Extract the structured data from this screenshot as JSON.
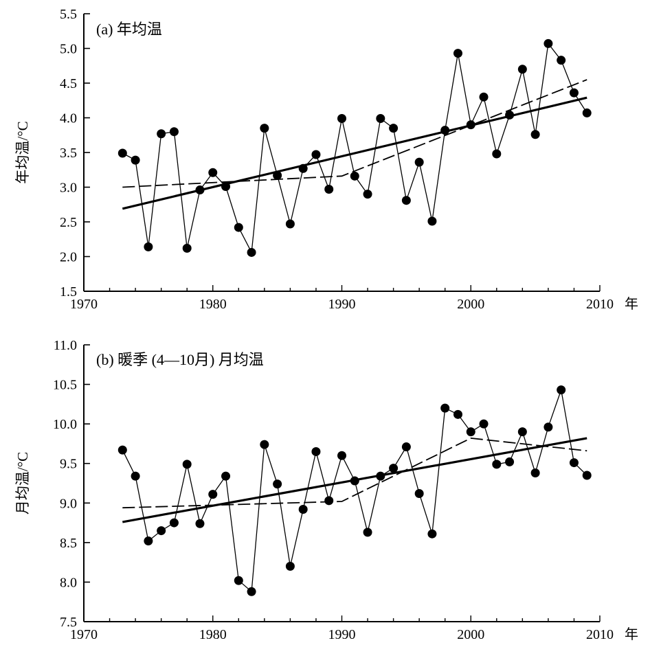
{
  "chart_data": [
    {
      "type": "line",
      "title": "(a) 年均温",
      "xlabel": "",
      "x_unit_label": "年",
      "ylabel": "年均温/°C",
      "xlim": [
        1970,
        2010
      ],
      "ylim": [
        1.5,
        5.5
      ],
      "xticks": [
        1970,
        1980,
        1990,
        2000,
        2010
      ],
      "yticks": [
        "1.5",
        "2.0",
        "2.5",
        "3.0",
        "3.5",
        "4.0",
        "4.5",
        "5.0",
        "5.5"
      ],
      "grid": false,
      "series": [
        {
          "style": "markers-solid-thin",
          "x": [
            1973,
            1974,
            1975,
            1976,
            1977,
            1978,
            1979,
            1980,
            1981,
            1982,
            1983,
            1984,
            1985,
            1986,
            1987,
            1988,
            1989,
            1990,
            1991,
            1992,
            1993,
            1994,
            1995,
            1996,
            1997,
            1998,
            1999,
            2000,
            2001,
            2002,
            2003,
            2004,
            2005,
            2006,
            2007,
            2008,
            2009
          ],
          "y": [
            3.49,
            3.39,
            2.14,
            3.77,
            3.8,
            2.12,
            2.96,
            3.21,
            3.01,
            2.42,
            2.06,
            3.85,
            3.17,
            2.47,
            3.27,
            3.47,
            2.97,
            3.99,
            3.16,
            2.9,
            3.99,
            3.85,
            2.81,
            3.36,
            2.51,
            3.82,
            4.93,
            3.9,
            4.3,
            3.48,
            4.04,
            4.7,
            3.76,
            5.07,
            4.83,
            4.36,
            4.07
          ]
        },
        {
          "style": "linear-trend-solid-thick",
          "x": [
            1973,
            2009
          ],
          "y": [
            2.69,
            4.29
          ]
        },
        {
          "style": "piecewise-dashed",
          "x": [
            1973,
            1990,
            2009
          ],
          "y": [
            3.0,
            3.16,
            4.55
          ]
        }
      ]
    },
    {
      "type": "line",
      "title": "(b) 暖季 (4—10月) 月均温",
      "xlabel": "",
      "x_unit_label": "年",
      "ylabel": "月均温/°C",
      "xlim": [
        1970,
        2010
      ],
      "ylim": [
        7.5,
        11.0
      ],
      "xticks": [
        1970,
        1980,
        1990,
        2000,
        2010
      ],
      "yticks": [
        "7.5",
        "8.0",
        "8.5",
        "9.0",
        "9.5",
        "10.0",
        "10.5",
        "11.0"
      ],
      "grid": false,
      "series": [
        {
          "style": "markers-solid-thin",
          "x": [
            1973,
            1974,
            1975,
            1976,
            1977,
            1978,
            1979,
            1980,
            1981,
            1982,
            1983,
            1984,
            1985,
            1986,
            1987,
            1988,
            1989,
            1990,
            1991,
            1992,
            1993,
            1994,
            1995,
            1996,
            1997,
            1998,
            1999,
            2000,
            2001,
            2002,
            2003,
            2004,
            2005,
            2006,
            2007,
            2008,
            2009
          ],
          "y": [
            9.67,
            9.34,
            8.52,
            8.65,
            8.75,
            9.49,
            8.74,
            9.11,
            9.34,
            8.02,
            7.88,
            9.74,
            9.24,
            8.2,
            8.92,
            9.65,
            9.03,
            9.6,
            9.28,
            8.63,
            9.34,
            9.44,
            9.71,
            9.12,
            8.61,
            10.2,
            10.12,
            9.9,
            10.0,
            9.49,
            9.52,
            9.9,
            9.38,
            9.96,
            10.43,
            9.51,
            9.35
          ]
        },
        {
          "style": "linear-trend-solid-thick",
          "x": [
            1973,
            2009
          ],
          "y": [
            8.76,
            9.82
          ]
        },
        {
          "style": "piecewise-dashed",
          "x": [
            1973,
            1990,
            2000,
            2009
          ],
          "y": [
            8.94,
            9.02,
            9.82,
            9.66
          ]
        }
      ]
    }
  ]
}
